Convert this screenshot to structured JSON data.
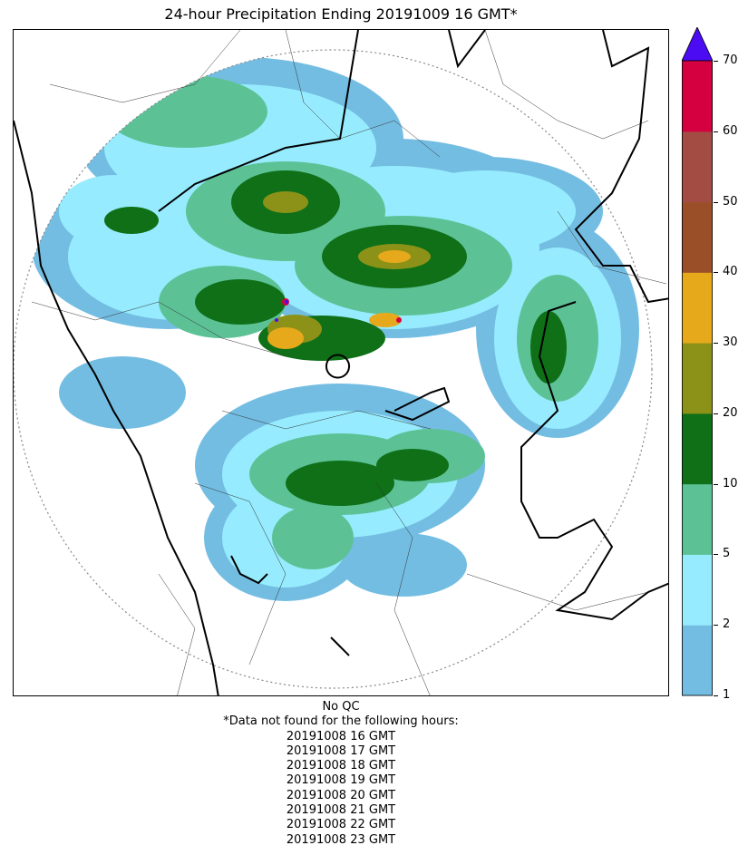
{
  "title": "24-hour Precipitation Ending 20191009 16 GMT*",
  "colorbar": {
    "ticks": [
      "1",
      "2",
      "5",
      "10",
      "20",
      "30",
      "40",
      "50",
      "60",
      "70"
    ],
    "colors": [
      "#74bde2",
      "#96ecfe",
      "#5cc296",
      "#0f7018",
      "#8c9217",
      "#e6a91b",
      "#9b4f28",
      "#a24c44",
      "#d5003f"
    ],
    "extend_color": "#4b0cf3"
  },
  "footer": {
    "qc": "No QC",
    "note": "*Data not found for the following hours:",
    "hours": [
      "20191008 16 GMT",
      "20191008 17 GMT",
      "20191008 18 GMT",
      "20191008 19 GMT",
      "20191008 20 GMT",
      "20191008 21 GMT",
      "20191008 22 GMT",
      "20191008 23 GMT"
    ]
  }
}
